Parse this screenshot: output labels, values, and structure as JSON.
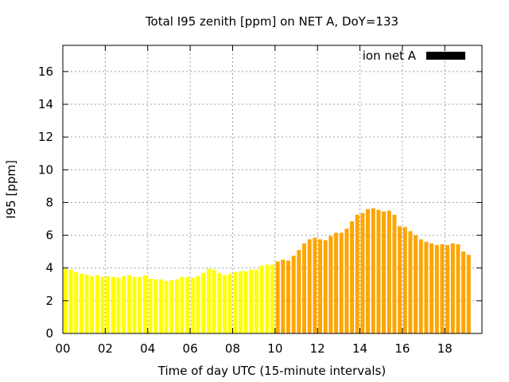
{
  "chart_data": {
    "type": "bar",
    "title": "Total I95 zenith [ppm] on NET A, DoY=133",
    "xlabel": "Time of day UTC (15-minute intervals)",
    "ylabel": "I95 [ppm]",
    "xlim": [
      0,
      19.75
    ],
    "ylim": [
      0,
      17.6
    ],
    "x_ticks": [
      "00",
      "02",
      "04",
      "06",
      "08",
      "10",
      "12",
      "14",
      "16",
      "18"
    ],
    "y_ticks": [
      "0",
      "2",
      "4",
      "6",
      "8",
      "10",
      "12",
      "14",
      "16"
    ],
    "grid": true,
    "legend": {
      "position": "top-right",
      "entries": [
        {
          "label": "ion net A",
          "color": "#000000"
        }
      ]
    },
    "bar_colors": {
      "before_10utc": "#ffff00",
      "from_10utc": "#ffa500"
    },
    "x_start_hour": 0,
    "x_step_hours": 0.25,
    "series": [
      {
        "values": [
          3.95,
          3.9,
          3.75,
          3.65,
          3.6,
          3.5,
          3.55,
          3.45,
          3.5,
          3.45,
          3.4,
          3.5,
          3.55,
          3.45,
          3.45,
          3.55,
          3.35,
          3.3,
          3.3,
          3.2,
          3.25,
          3.3,
          3.45,
          3.45,
          3.4,
          3.5,
          3.7,
          3.95,
          3.9,
          3.7,
          3.55,
          3.65,
          3.75,
          3.8,
          3.8,
          3.9,
          3.9,
          4.15,
          4.2,
          4.2,
          4.4,
          4.5,
          4.45,
          4.75,
          5.1,
          5.5,
          5.75,
          5.85,
          5.75,
          5.7,
          5.95,
          6.15,
          6.15,
          6.4,
          6.85,
          7.25,
          7.35,
          7.6,
          7.65,
          7.55,
          7.45,
          7.5,
          7.25,
          6.55,
          6.5,
          6.25,
          6.0,
          5.75,
          5.6,
          5.5,
          5.4,
          5.45,
          5.4,
          5.5,
          5.45,
          5.0,
          4.8
        ]
      }
    ]
  }
}
